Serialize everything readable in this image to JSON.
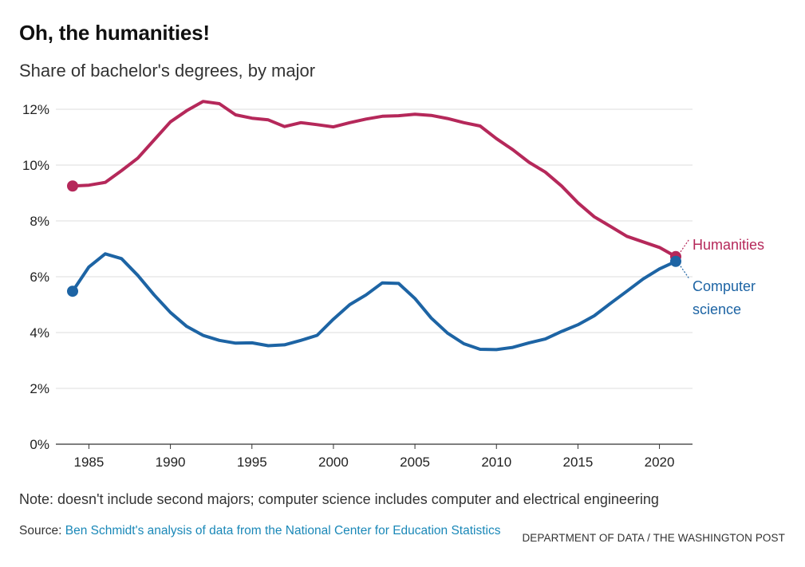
{
  "header": {
    "title": "Oh, the humanities!",
    "subtitle": "Share of bachelor's degrees, by major"
  },
  "chart_data": {
    "type": "line",
    "title": "Oh, the humanities!",
    "subtitle": "Share of bachelor's degrees, by major",
    "xlabel": "",
    "ylabel": "",
    "xlim": [
      1984,
      2021
    ],
    "ylim": [
      0,
      12
    ],
    "grid": true,
    "x_ticks": [
      1985,
      1990,
      1995,
      2000,
      2005,
      2010,
      2015,
      2020
    ],
    "y_ticks": [
      0,
      2,
      4,
      6,
      8,
      10,
      12
    ],
    "y_tick_labels": [
      "0%",
      "2%",
      "4%",
      "6%",
      "8%",
      "10%",
      "12%"
    ],
    "x": [
      1984,
      1985,
      1986,
      1987,
      1988,
      1989,
      1990,
      1991,
      1992,
      1993,
      1994,
      1995,
      1996,
      1997,
      1998,
      1999,
      2000,
      2001,
      2002,
      2003,
      2004,
      2005,
      2006,
      2007,
      2008,
      2009,
      2010,
      2011,
      2012,
      2013,
      2014,
      2015,
      2016,
      2017,
      2018,
      2019,
      2020,
      2021
    ],
    "series": [
      {
        "name": "Humanities",
        "color": "#b5285a",
        "values": [
          9.25,
          9.28,
          9.38,
          9.8,
          10.25,
          10.9,
          11.55,
          11.95,
          12.28,
          12.2,
          11.8,
          11.68,
          11.62,
          11.38,
          11.52,
          11.45,
          11.37,
          11.52,
          11.65,
          11.75,
          11.77,
          11.82,
          11.78,
          11.67,
          11.52,
          11.4,
          10.95,
          10.55,
          10.1,
          9.75,
          9.25,
          8.65,
          8.15,
          7.8,
          7.45,
          7.25,
          7.05,
          6.72
        ]
      },
      {
        "name": "Computer science",
        "color": "#1d64a4",
        "values": [
          5.48,
          6.35,
          6.82,
          6.65,
          6.05,
          5.35,
          4.72,
          4.22,
          3.9,
          3.72,
          3.62,
          3.63,
          3.53,
          3.56,
          3.72,
          3.9,
          4.48,
          5.0,
          5.35,
          5.78,
          5.76,
          5.22,
          4.52,
          3.98,
          3.6,
          3.4,
          3.39,
          3.47,
          3.63,
          3.77,
          4.04,
          4.28,
          4.6,
          5.05,
          5.48,
          5.92,
          6.28,
          6.55
        ]
      }
    ],
    "series_labels": {
      "humanities": "Humanities",
      "cs_line1": "Computer",
      "cs_line2": "science"
    },
    "legend": "direct labels at line ends (right)"
  },
  "footer": {
    "note": "Note: doesn't include second majors; computer science includes computer and electrical engineering",
    "source_prefix": "Source: ",
    "source_link": "Ben Schmidt's analysis of data from the National Center for Education Statistics",
    "credit": "DEPARTMENT OF DATA / THE WASHINGTON POST"
  }
}
